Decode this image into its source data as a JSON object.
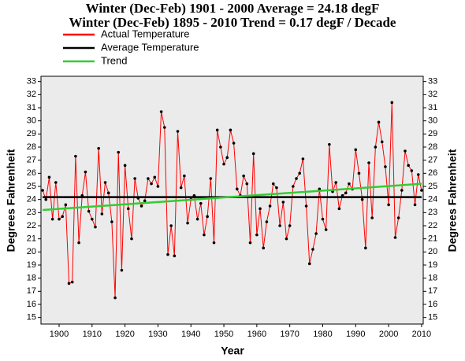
{
  "chart_data": {
    "type": "line",
    "title": "Winter (Dec-Feb) 1901 - 2000 Average = 24.18 degF",
    "subtitle": "Winter (Dec-Feb) 1895 - 2010 Trend = 0.17 degF / Decade",
    "xlabel": "Year",
    "ylabel": "Degrees Fahrenheit",
    "xlim": [
      1894.5,
      2010.5
    ],
    "ylim": [
      14.5,
      33.4
    ],
    "xticks": [
      1900,
      1910,
      1920,
      1930,
      1940,
      1950,
      1960,
      1970,
      1980,
      1990,
      2000,
      2010
    ],
    "yticks": [
      15,
      16,
      17,
      18,
      19,
      20,
      21,
      22,
      23,
      24,
      25,
      26,
      27,
      28,
      29,
      30,
      31,
      32,
      33
    ],
    "series": [
      {
        "name": "Actual Temperature",
        "color": "#ff0000",
        "markers": true,
        "x": [
          1895,
          1896,
          1897,
          1898,
          1899,
          1900,
          1901,
          1902,
          1903,
          1904,
          1905,
          1906,
          1907,
          1908,
          1909,
          1910,
          1911,
          1912,
          1913,
          1914,
          1915,
          1916,
          1917,
          1918,
          1919,
          1920,
          1921,
          1922,
          1923,
          1924,
          1925,
          1926,
          1927,
          1928,
          1929,
          1930,
          1931,
          1932,
          1933,
          1934,
          1935,
          1936,
          1937,
          1938,
          1939,
          1940,
          1941,
          1942,
          1943,
          1944,
          1945,
          1946,
          1947,
          1948,
          1949,
          1950,
          1951,
          1952,
          1953,
          1954,
          1955,
          1956,
          1957,
          1958,
          1959,
          1960,
          1961,
          1962,
          1963,
          1964,
          1965,
          1966,
          1967,
          1968,
          1969,
          1970,
          1971,
          1972,
          1973,
          1974,
          1975,
          1976,
          1977,
          1978,
          1979,
          1980,
          1981,
          1982,
          1983,
          1984,
          1985,
          1986,
          1987,
          1988,
          1989,
          1990,
          1991,
          1992,
          1993,
          1994,
          1995,
          1996,
          1997,
          1998,
          1999,
          2000,
          2001,
          2002,
          2003,
          2004,
          2005,
          2006,
          2007,
          2008,
          2009,
          2010
        ],
        "values": [
          24.7,
          24.0,
          25.7,
          22.5,
          25.3,
          22.5,
          22.7,
          23.6,
          17.6,
          17.7,
          27.3,
          20.7,
          24.3,
          26.1,
          23.1,
          22.5,
          21.9,
          27.9,
          22.9,
          25.3,
          24.5,
          22.3,
          16.5,
          27.6,
          18.6,
          26.6,
          23.3,
          21.0,
          25.6,
          24.1,
          23.5,
          23.9,
          25.6,
          25.2,
          25.7,
          25.0,
          30.7,
          29.5,
          19.8,
          22.0,
          19.7,
          29.2,
          24.9,
          25.8,
          22.2,
          24.0,
          24.3,
          22.5,
          23.7,
          21.3,
          22.7,
          25.6,
          20.7,
          29.3,
          28.0,
          26.7,
          27.2,
          29.3,
          28.3,
          24.8,
          24.3,
          25.8,
          25.2,
          20.7,
          27.5,
          21.3,
          23.3,
          20.3,
          22.3,
          23.5,
          25.2,
          24.9,
          22.0,
          23.8,
          21.0,
          22.0,
          25.0,
          25.6,
          26.0,
          27.1,
          23.5,
          19.1,
          20.2,
          21.4,
          24.8,
          22.5,
          21.7,
          28.2,
          24.6,
          25.3,
          23.3,
          24.3,
          24.5,
          25.2,
          24.8,
          27.8,
          26.0,
          24.0,
          20.3,
          26.8,
          22.6,
          28.0,
          29.9,
          28.4,
          26.5,
          23.6,
          31.4,
          21.1,
          22.6,
          24.7,
          27.7,
          26.6,
          26.2,
          23.6,
          25.9,
          24.7
        ]
      },
      {
        "name": "Average Temperature",
        "color": "#000000",
        "markers": false,
        "x": [
          1895,
          2010
        ],
        "values": [
          24.18,
          24.18
        ]
      },
      {
        "name": "Trend",
        "color": "#33cc33",
        "markers": false,
        "x": [
          1895,
          2010
        ],
        "values": [
          23.2,
          25.2
        ]
      }
    ]
  }
}
